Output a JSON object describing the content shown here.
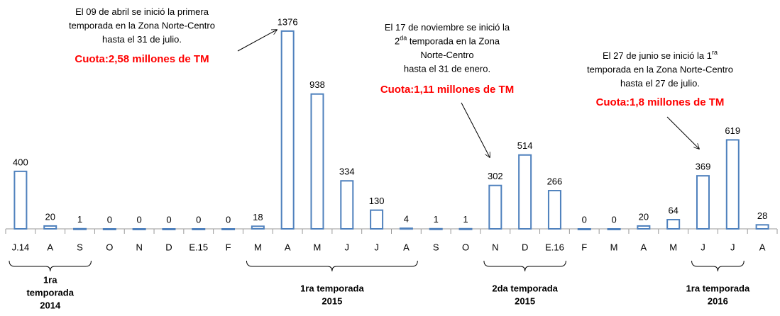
{
  "chart_data": {
    "type": "bar",
    "categories": [
      "J.14",
      "A",
      "S",
      "O",
      "N",
      "D",
      "E.15",
      "F",
      "M",
      "A",
      "M",
      "J",
      "J",
      "A",
      "S",
      "O",
      "N",
      "D",
      "E.16",
      "F",
      "M",
      "A",
      "M",
      "J",
      "J",
      "A"
    ],
    "values": [
      400,
      20,
      1,
      0,
      0,
      0,
      0,
      0,
      18,
      1376,
      938,
      334,
      130,
      4,
      1,
      1,
      302,
      514,
      266,
      0,
      0,
      20,
      64,
      369,
      619,
      28
    ],
    "color": "#4f81bd",
    "ylim": [
      0,
      1400
    ],
    "annotations": [
      {
        "lines": [
          "El 09 de abril se inició la primera",
          "temporada en la Zona  Norte-Centro",
          "hasta el 31 de julio."
        ],
        "quota": "Cuota:2,58 millones de TM"
      },
      {
        "lines": [
          "El 17 de noviembre se inició la",
          {
            "base": "2",
            "sup": "da",
            "rest": " temporada en la Zona"
          },
          "Norte-Centro",
          "hasta el 31 de enero."
        ],
        "quota": "Cuota:1,11 millones de TM"
      },
      {
        "lines": [
          "El 27 de junio se inició la 1",
          "temporada en la Zona  Norte-Centro",
          "hasta el 27 de julio."
        ],
        "lines_sup": "ra",
        "quota": "Cuota:1,8 millones de TM"
      }
    ],
    "seasons": [
      {
        "lines": [
          "1ra",
          "temporada",
          "2014"
        ]
      },
      {
        "lines": [
          "1ra temporada",
          "2015"
        ]
      },
      {
        "lines": [
          "2da temporada",
          "2015"
        ]
      },
      {
        "lines": [
          "1ra temporada",
          "2016"
        ]
      }
    ]
  }
}
